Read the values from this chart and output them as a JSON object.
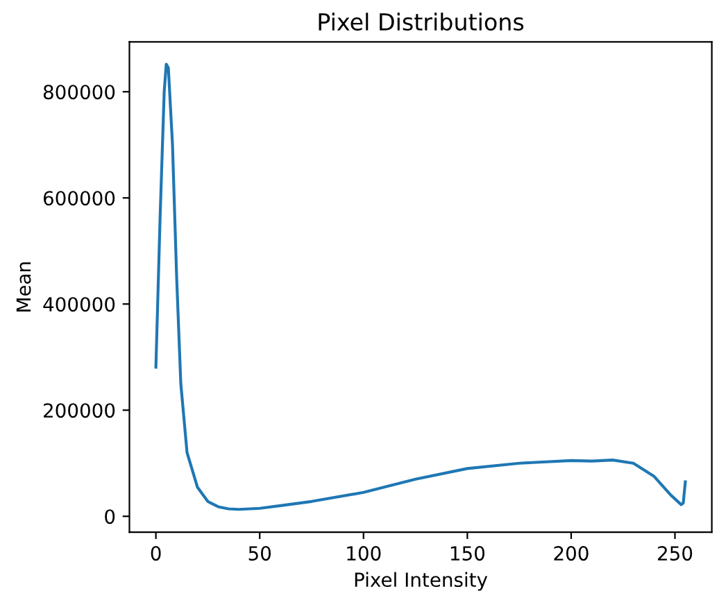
{
  "chart_data": {
    "type": "line",
    "title": "Pixel Distributions",
    "xlabel": "Pixel Intensity",
    "ylabel": "Mean",
    "xlim": [
      -12.75,
      267.75
    ],
    "ylim": [
      -30000,
      894000
    ],
    "xticks": [
      0,
      50,
      100,
      150,
      200,
      250
    ],
    "yticks": [
      0,
      200000,
      400000,
      600000,
      800000
    ],
    "grid": false,
    "marker": "none",
    "line_style": "solid",
    "series": [
      {
        "color": "#1f77b4",
        "x": [
          0,
          2,
          4,
          5,
          6,
          8,
          10,
          12,
          15,
          20,
          25,
          30,
          35,
          40,
          50,
          60,
          75,
          100,
          125,
          150,
          175,
          200,
          210,
          220,
          230,
          240,
          248,
          253,
          254,
          255
        ],
        "values": [
          281000,
          560000,
          800000,
          852000,
          845000,
          700000,
          450000,
          250000,
          120000,
          55000,
          28000,
          18000,
          14000,
          13000,
          15000,
          20000,
          28000,
          45000,
          70000,
          90000,
          100000,
          105000,
          104000,
          106000,
          100000,
          75000,
          40000,
          22000,
          25000,
          65000
        ]
      }
    ]
  }
}
